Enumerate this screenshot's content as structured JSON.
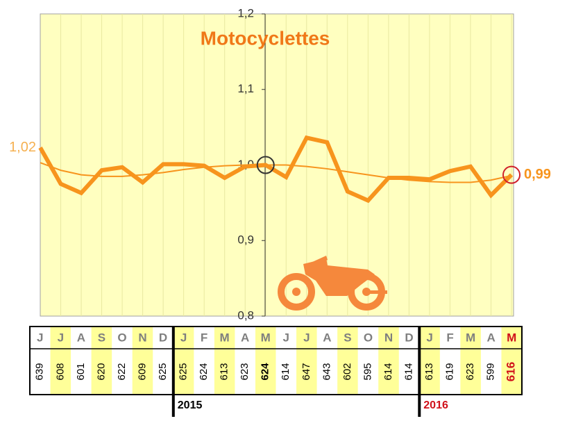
{
  "chart_data": {
    "type": "line",
    "title": "Motocyclettes",
    "categories": [
      "J",
      "J",
      "A",
      "S",
      "O",
      "N",
      "D",
      "J",
      "F",
      "M",
      "A",
      "M",
      "J",
      "J",
      "A",
      "S",
      "O",
      "N",
      "D",
      "J",
      "F",
      "M",
      "A",
      "M"
    ],
    "series": [
      {
        "color": "#f7941d",
        "values": [
          1.023,
          0.975,
          0.963,
          0.993,
          0.997,
          0.977,
          1.001,
          1.001,
          0.999,
          0.983,
          0.998,
          1.0,
          0.984,
          1.036,
          1.03,
          0.965,
          0.953,
          0.983,
          0.983,
          0.981,
          0.992,
          0.998,
          0.96,
          0.987
        ],
        "value_labels": [
          "1,02",
          null,
          null,
          null,
          null,
          null,
          null,
          null,
          null,
          null,
          null,
          null,
          null,
          null,
          null,
          null,
          null,
          null,
          null,
          null,
          null,
          null,
          null,
          "0,99"
        ]
      }
    ],
    "trend": {
      "color": "#f7941d",
      "values": [
        1.003,
        0.993,
        0.987,
        0.985,
        0.985,
        0.987,
        0.99,
        0.994,
        0.997,
        0.999,
        1.0,
        1.0,
        1.0,
        0.998,
        0.995,
        0.991,
        0.987,
        0.983,
        0.98,
        0.978,
        0.977,
        0.977,
        0.98,
        0.986
      ]
    },
    "ylim": [
      0.8,
      1.2
    ],
    "yticks": [
      {
        "value": 0.8,
        "label": "0,8"
      },
      {
        "value": 0.9,
        "label": "0,9"
      },
      {
        "value": 1.0,
        "label": "1,0"
      },
      {
        "value": 1.1,
        "label": "1,1"
      },
      {
        "value": 1.2,
        "label": "1,2"
      }
    ],
    "grid": true
  },
  "table": {
    "counts": [
      "639",
      "608",
      "601",
      "620",
      "622",
      "609",
      "625",
      "625",
      "624",
      "613",
      "623",
      "624",
      "614",
      "647",
      "643",
      "602",
      "595",
      "614",
      "614",
      "613",
      "619",
      "623",
      "599",
      "616"
    ],
    "years": [
      "2015",
      "2016"
    ]
  }
}
